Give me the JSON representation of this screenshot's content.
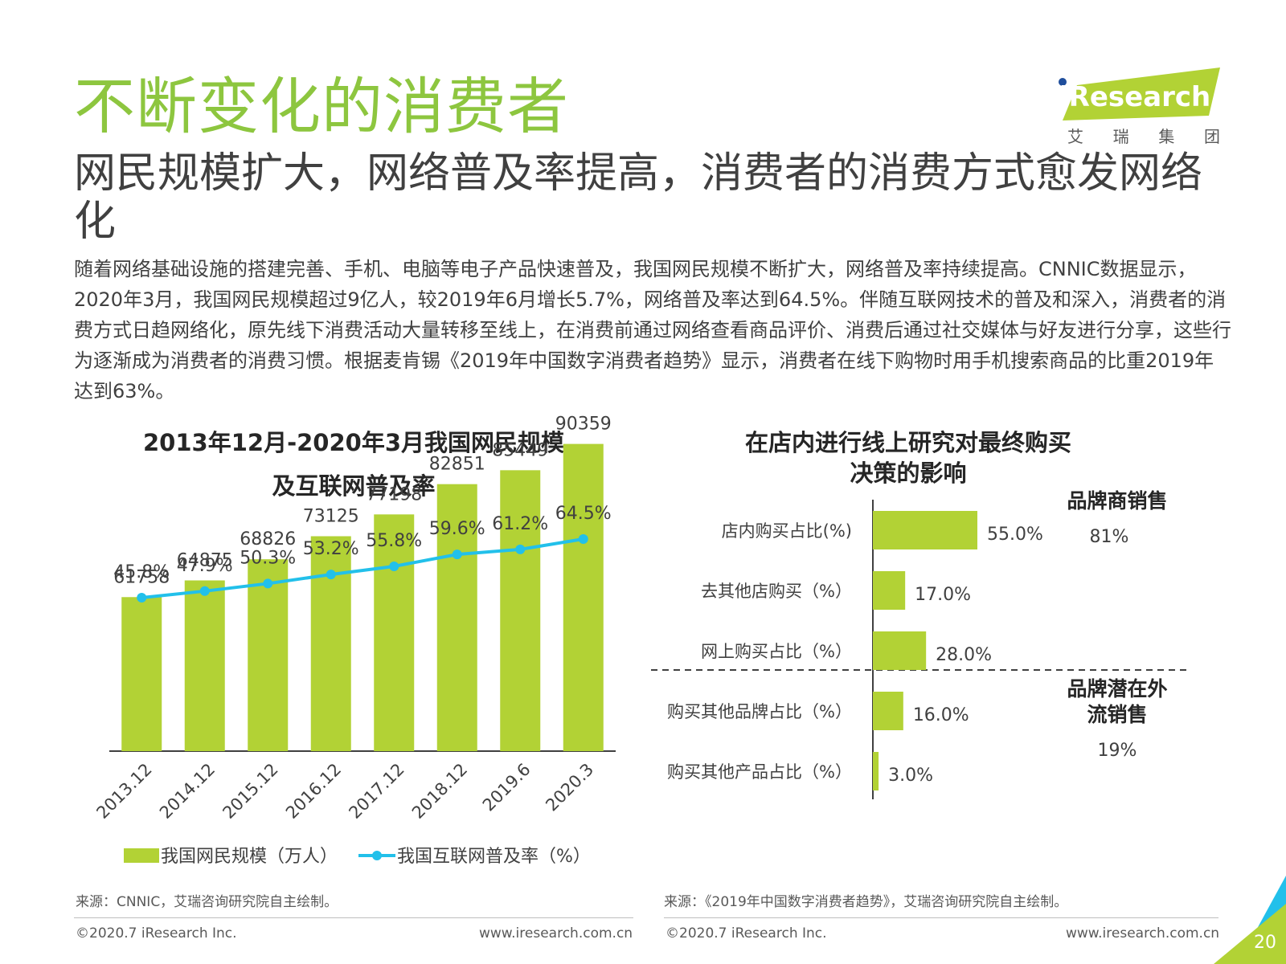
{
  "page": {
    "title": "不断变化的消费者",
    "subtitle": "网民规模扩大，网络普及率提高，消费者的消费方式愈发网络化",
    "body": "随着网络基础设施的搭建完善、手机、电脑等电子产品快速普及，我国网民规模不断扩大，网络普及率持续提高。CNNIC数据显示，2020年3月，我国网民规模超过9亿人，较2019年6月增长5.7%，网络普及率达到64.5%。伴随互联网技术的普及和深入，消费者的消费方式日趋网络化，原先线下消费活动大量转移至线上，在消费前通过网络查看商品评价、消费后通过社交媒体与好友进行分享，这些行为逐渐成为消费者的消费习惯。根据麦肯锡《2019年中国数字消费者趋势》显示，消费者在线下购物时用手机搜索商品的比重2019年达到63%。",
    "logo_text": "iResearch",
    "logo_sub": [
      "艾",
      "瑞",
      "集",
      "团"
    ],
    "page_number": "20",
    "colors": {
      "green": "#b2d235",
      "title_green": "#8dc63f",
      "blue": "#22c0ea",
      "text": "#404040"
    }
  },
  "chart_data": [
    {
      "type": "bar",
      "title_line1": "2013年12月-2020年3月我国网民规模",
      "title_line2": "及互联网普及率",
      "categories": [
        "2013.12",
        "2014.12",
        "2015.12",
        "2016.12",
        "2017.12",
        "2018.12",
        "2019.6",
        "2020.3"
      ],
      "series": [
        {
          "name": "我国网民规模（万人）",
          "type": "bar",
          "values": [
            61758,
            64875,
            68826,
            73125,
            77198,
            82851,
            85449,
            90359
          ],
          "color": "#b2d235"
        },
        {
          "name": "我国互联网普及率（%）",
          "type": "line",
          "values": [
            45.8,
            47.9,
            50.3,
            53.2,
            55.8,
            59.6,
            61.2,
            64.5
          ],
          "labels": [
            "45.8%",
            "47.9%",
            "50.3%",
            "53.2%",
            "55.8%",
            "59.6%",
            "61.2%",
            "64.5%"
          ],
          "color": "#22c0ea"
        }
      ],
      "legend_position": "bottom",
      "source": "来源：CNNIC，艾瑞咨询研究院自主绘制。",
      "footer_left": "©2020.7 iResearch Inc.",
      "footer_right": "www.iresearch.com.cn"
    },
    {
      "type": "bar",
      "orientation": "horizontal",
      "title_line1": "在店内进行线上研究对最终购买",
      "title_line2": "决策的影响",
      "categories": [
        "店内购买占比(%)",
        "去其他店购买（%）",
        "网上购买占比（%）",
        "购买其他品牌占比（%）",
        "购买其他产品占比（%）"
      ],
      "values": [
        55.0,
        17.0,
        28.0,
        16.0,
        3.0
      ],
      "labels": [
        "55.0%",
        "17.0%",
        "28.0%",
        "16.0%",
        "3.0%"
      ],
      "color": "#b2d235",
      "groups": [
        {
          "name": "品牌商销售",
          "value": "81%"
        },
        {
          "name_line1": "品牌潜在外",
          "name_line2": "流销售",
          "value": "19%"
        }
      ],
      "source": "来源：《2019年中国数字消费者趋势》，艾瑞咨询研究院自主绘制。",
      "footer_left": "©2020.7 iResearch Inc.",
      "footer_right": "www.iresearch.com.cn"
    }
  ]
}
